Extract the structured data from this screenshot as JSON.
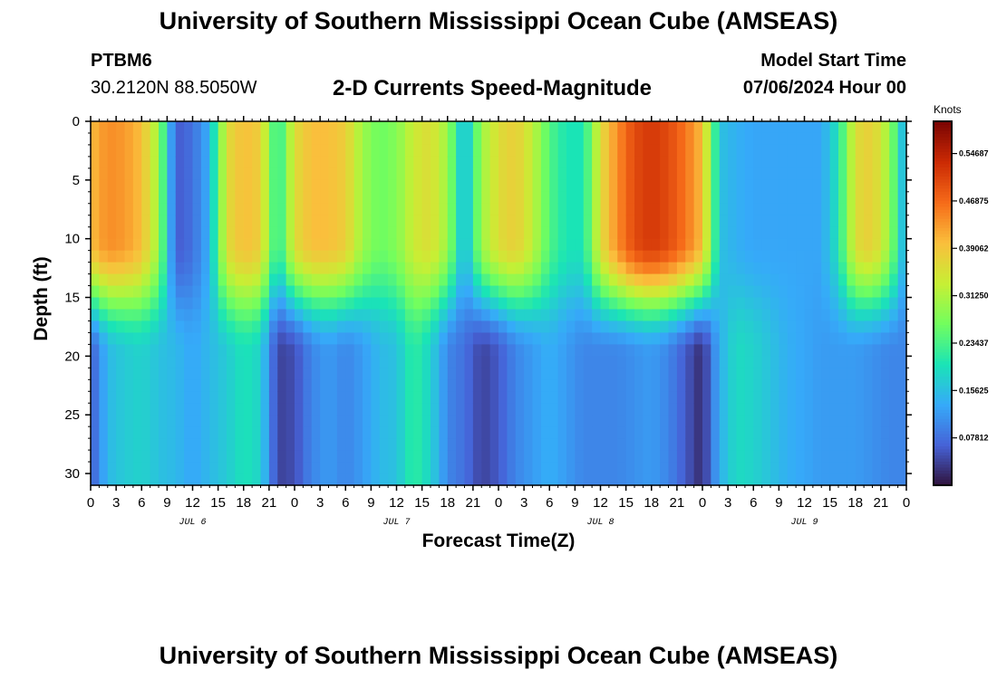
{
  "header": {
    "title": "University of Southern Mississippi Ocean Cube (AMSEAS)",
    "station": "PTBM6",
    "location": "30.2120N  88.5050W",
    "variable": "2-D Currents Speed-Magnitude",
    "model_start_label": "Model Start Time",
    "model_start_value": "07/06/2024 Hour 00"
  },
  "footer": {
    "title": "University of Southern Mississippi Ocean Cube (AMSEAS)"
  },
  "chart_data": {
    "type": "heatmap",
    "title": "2-D Currents Speed-Magnitude",
    "xlabel": "Forecast Time(Z)",
    "ylabel": "Depth (ft)",
    "x_range_hours": [
      0,
      96
    ],
    "x_tick_labels": [
      "0",
      "3",
      "6",
      "9",
      "12",
      "15",
      "18",
      "21",
      "0",
      "3",
      "6",
      "9",
      "12",
      "15",
      "18",
      "21",
      "0",
      "3",
      "6",
      "9",
      "12",
      "15",
      "18",
      "21",
      "0",
      "3",
      "6",
      "9",
      "12",
      "15",
      "18",
      "21",
      "0"
    ],
    "day_labels": [
      {
        "label": "JUL 6",
        "hour": 12
      },
      {
        "label": "JUL 7",
        "hour": 36
      },
      {
        "label": "JUL 8",
        "hour": 60
      },
      {
        "label": "JUL 9",
        "hour": 84
      }
    ],
    "ylim": [
      0,
      31
    ],
    "y_ticks": [
      0,
      5,
      10,
      15,
      20,
      25,
      30
    ],
    "colorbar": {
      "unit": "Knots",
      "range": [
        0.0,
        0.6
      ],
      "tick_values": [
        0.07812,
        0.15625,
        0.23437,
        0.3125,
        0.39062,
        0.46875,
        0.54687
      ],
      "tick_labels": [
        "0.07812",
        "0.15625",
        "0.23437",
        "0.31250",
        "0.39062",
        "0.46875",
        "0.54687"
      ],
      "colors": [
        "#30123b",
        "#4662d7",
        "#36aaf9",
        "#1ae4b6",
        "#72fe5e",
        "#c7ef34",
        "#fabf3c",
        "#f66b19",
        "#cb2a04",
        "#7a0403"
      ]
    },
    "upper_layer": {
      "depth_range_ft": [
        0,
        10
      ],
      "hours": [
        0,
        2,
        4,
        6,
        8,
        10,
        12,
        14,
        16,
        18,
        20,
        22,
        24,
        26,
        28,
        30,
        32,
        34,
        36,
        38,
        40,
        42,
        44,
        46,
        48,
        50,
        52,
        54,
        56,
        58,
        60,
        62,
        64,
        66,
        68,
        70,
        72,
        74,
        76,
        78,
        80,
        82,
        84,
        86,
        88,
        90,
        92,
        94,
        96
      ],
      "speed": [
        0.4,
        0.44,
        0.43,
        0.4,
        0.3,
        0.06,
        0.08,
        0.14,
        0.36,
        0.4,
        0.38,
        0.2,
        0.36,
        0.4,
        0.4,
        0.38,
        0.3,
        0.26,
        0.28,
        0.34,
        0.36,
        0.3,
        0.14,
        0.3,
        0.36,
        0.38,
        0.33,
        0.24,
        0.2,
        0.2,
        0.36,
        0.44,
        0.5,
        0.52,
        0.5,
        0.46,
        0.4,
        0.16,
        0.14,
        0.13,
        0.13,
        0.13,
        0.13,
        0.13,
        0.2,
        0.36,
        0.38,
        0.3,
        0.12
      ]
    },
    "lower_layer": {
      "depth_range_ft": [
        20,
        31
      ],
      "hours": [
        0,
        2,
        4,
        6,
        8,
        10,
        12,
        14,
        16,
        18,
        20,
        22,
        24,
        26,
        28,
        30,
        32,
        34,
        36,
        38,
        40,
        42,
        44,
        46,
        48,
        50,
        52,
        54,
        56,
        58,
        60,
        62,
        64,
        66,
        68,
        70,
        72,
        74,
        76,
        78,
        80,
        82,
        84,
        86,
        88,
        90,
        92,
        94,
        96
      ],
      "speed": [
        0.06,
        0.15,
        0.17,
        0.18,
        0.16,
        0.15,
        0.13,
        0.15,
        0.17,
        0.2,
        0.18,
        0.04,
        0.05,
        0.1,
        0.12,
        0.1,
        0.12,
        0.15,
        0.16,
        0.22,
        0.18,
        0.1,
        0.08,
        0.04,
        0.06,
        0.1,
        0.12,
        0.14,
        0.12,
        0.1,
        0.1,
        0.1,
        0.11,
        0.12,
        0.1,
        0.06,
        0.02,
        0.14,
        0.19,
        0.18,
        0.16,
        0.14,
        0.13,
        0.12,
        0.12,
        0.12,
        0.11,
        0.1,
        0.1
      ]
    }
  }
}
